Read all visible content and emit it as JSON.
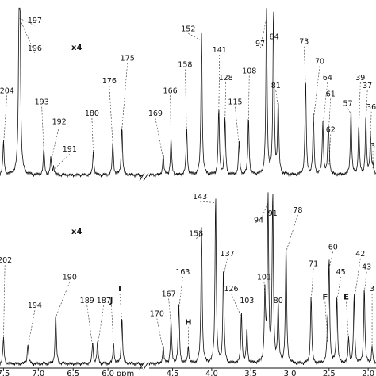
{
  "chart_data": {
    "type": "line",
    "xlabel": "ppm",
    "x_ticks_left": [
      "7.5",
      "7.0",
      "6.5",
      "6.0"
    ],
    "x_ticks_right": [
      "4.5",
      "4.0",
      "3.5",
      "3.0",
      "2.5",
      "2.0"
    ],
    "x_tick_values_left": [
      7.5,
      7.0,
      6.5,
      6.0
    ],
    "x_tick_values_right": [
      4.5,
      4.0,
      3.5,
      3.0,
      2.5,
      2.0
    ],
    "x_range_left": [
      7.55,
      5.5
    ],
    "x_range_right": [
      4.8,
      1.9
    ],
    "panels": [
      {
        "name": "top",
        "scale_note": "x4",
        "peaks_left": [
          {
            "label": "204",
            "ppm": 7.5,
            "h": 0.2,
            "lx": 7.45,
            "ly": 0.52
          },
          {
            "label": "197",
            "ppm": 7.27,
            "h": 1.0,
            "lx": 7.05,
            "ly": 0.95
          },
          {
            "label": "196",
            "ppm": 7.27,
            "h": 1.0,
            "lx": 7.05,
            "ly": 0.78
          },
          {
            "label": "193",
            "ppm": 6.92,
            "h": 0.16,
            "lx": 6.95,
            "ly": 0.45
          },
          {
            "label": "192",
            "ppm": 6.82,
            "h": 0.1,
            "lx": 6.7,
            "ly": 0.33
          },
          {
            "label": "191",
            "ppm": 6.78,
            "h": 0.05,
            "lx": 6.55,
            "ly": 0.16
          },
          {
            "label": "180",
            "ppm": 6.21,
            "h": 0.14,
            "lx": 6.23,
            "ly": 0.38
          },
          {
            "label": "176",
            "ppm": 5.93,
            "h": 0.2,
            "lx": 5.98,
            "ly": 0.58
          },
          {
            "label": "175",
            "ppm": 5.8,
            "h": 0.3,
            "lx": 5.72,
            "ly": 0.72
          }
        ],
        "peaks_right": [
          {
            "label": "169",
            "ppm": 4.62,
            "h": 0.12,
            "lx": 4.72,
            "ly": 0.38
          },
          {
            "label": "166",
            "ppm": 4.52,
            "h": 0.22,
            "lx": 4.53,
            "ly": 0.52
          },
          {
            "label": "158",
            "ppm": 4.32,
            "h": 0.28,
            "lx": 4.34,
            "ly": 0.68
          },
          {
            "label": "152",
            "ppm": 4.13,
            "h": 0.86,
            "lx": 4.3,
            "ly": 0.9
          },
          {
            "label": "141",
            "ppm": 3.91,
            "h": 0.4,
            "lx": 3.9,
            "ly": 0.77
          },
          {
            "label": "128",
            "ppm": 3.83,
            "h": 0.34,
            "lx": 3.82,
            "ly": 0.6
          },
          {
            "label": "115",
            "ppm": 3.65,
            "h": 0.2,
            "lx": 3.7,
            "ly": 0.45
          },
          {
            "label": "108",
            "ppm": 3.53,
            "h": 0.35,
            "lx": 3.52,
            "ly": 0.64
          },
          {
            "label": "97",
            "ppm": 3.3,
            "h": 1.0,
            "lx": 3.38,
            "ly": 0.81
          },
          {
            "label": "84",
            "ppm": 3.21,
            "h": 1.0,
            "lx": 3.2,
            "ly": 0.85
          },
          {
            "label": "81",
            "ppm": 3.15,
            "h": 0.44,
            "lx": 3.18,
            "ly": 0.55
          },
          {
            "label": "73",
            "ppm": 2.8,
            "h": 0.58,
            "lx": 2.82,
            "ly": 0.82
          },
          {
            "label": "70",
            "ppm": 2.7,
            "h": 0.36,
            "lx": 2.62,
            "ly": 0.7
          },
          {
            "label": "64",
            "ppm": 2.58,
            "h": 0.32,
            "lx": 2.52,
            "ly": 0.6
          },
          {
            "label": "61",
            "ppm": 2.51,
            "h": 0.26,
            "lx": 2.48,
            "ly": 0.5
          },
          {
            "label": "62",
            "ppm": 2.5,
            "h": 0.08,
            "lx": 2.48,
            "ly": 0.28
          },
          {
            "label": "57",
            "ppm": 2.22,
            "h": 0.4,
            "lx": 2.26,
            "ly": 0.44
          },
          {
            "label": "39",
            "ppm": 2.12,
            "h": 0.3,
            "lx": 2.1,
            "ly": 0.6
          },
          {
            "label": "37",
            "ppm": 2.03,
            "h": 0.34,
            "lx": 2.01,
            "ly": 0.55
          },
          {
            "label": "36",
            "ppm": 1.97,
            "h": 0.25,
            "lx": 1.96,
            "ly": 0.42
          },
          {
            "label": "3",
            "ppm": 1.94,
            "h": 0.05,
            "lx": 1.94,
            "ly": 0.18
          }
        ]
      },
      {
        "name": "bottom",
        "scale_note": "x4",
        "peaks_left": [
          {
            "label": "202",
            "ppm": 7.5,
            "h": 0.15,
            "lx": 7.48,
            "ly": 0.62
          },
          {
            "label": "194",
            "ppm": 7.15,
            "h": 0.12,
            "lx": 7.05,
            "ly": 0.35
          },
          {
            "label": "190",
            "ppm": 6.75,
            "h": 0.3,
            "lx": 6.55,
            "ly": 0.52
          },
          {
            "label": "189",
            "ppm": 6.22,
            "h": 0.12,
            "lx": 6.3,
            "ly": 0.38
          },
          {
            "label": "187",
            "ppm": 6.15,
            "h": 0.12,
            "lx": 6.06,
            "ly": 0.38
          },
          {
            "label": "J",
            "ppm": 5.92,
            "h": 0.12,
            "lx": 5.95,
            "ly": 0.38
          },
          {
            "label": "I",
            "ppm": 5.8,
            "h": 0.28,
            "lx": 5.83,
            "ly": 0.45
          }
        ],
        "peaks_right": [
          {
            "label": "170",
            "ppm": 4.62,
            "h": 0.1,
            "lx": 4.7,
            "ly": 0.3
          },
          {
            "label": "167",
            "ppm": 4.52,
            "h": 0.25,
            "lx": 4.55,
            "ly": 0.42
          },
          {
            "label": "163",
            "ppm": 4.42,
            "h": 0.35,
            "lx": 4.37,
            "ly": 0.55
          },
          {
            "label": "H",
            "ppm": 4.3,
            "h": 0.1,
            "lx": 4.3,
            "ly": 0.25
          },
          {
            "label": "158",
            "ppm": 4.13,
            "h": 0.8,
            "lx": 4.2,
            "ly": 0.78
          },
          {
            "label": "143",
            "ppm": 3.95,
            "h": 1.0,
            "lx": 4.15,
            "ly": 1.0
          },
          {
            "label": "137",
            "ppm": 3.85,
            "h": 0.55,
            "lx": 3.8,
            "ly": 0.66
          },
          {
            "label": "126",
            "ppm": 3.62,
            "h": 0.3,
            "lx": 3.75,
            "ly": 0.45
          },
          {
            "label": "103",
            "ppm": 3.55,
            "h": 0.2,
            "lx": 3.55,
            "ly": 0.38
          },
          {
            "label": "101",
            "ppm": 3.32,
            "h": 0.4,
            "lx": 3.33,
            "ly": 0.52
          },
          {
            "label": "94",
            "ppm": 3.28,
            "h": 1.0,
            "lx": 3.4,
            "ly": 0.86
          },
          {
            "label": "91",
            "ppm": 3.22,
            "h": 1.0,
            "lx": 3.22,
            "ly": 0.9
          },
          {
            "label": "80",
            "ppm": 3.15,
            "h": 0.35,
            "lx": 3.15,
            "ly": 0.38
          },
          {
            "label": "78",
            "ppm": 3.05,
            "h": 0.7,
            "lx": 2.9,
            "ly": 0.92
          },
          {
            "label": "71",
            "ppm": 2.73,
            "h": 0.4,
            "lx": 2.7,
            "ly": 0.6
          },
          {
            "label": "F",
            "ppm": 2.52,
            "h": 0.15,
            "lx": 2.55,
            "ly": 0.4
          },
          {
            "label": "60",
            "ppm": 2.5,
            "h": 0.6,
            "lx": 2.45,
            "ly": 0.7
          },
          {
            "label": "45",
            "ppm": 2.4,
            "h": 0.4,
            "lx": 2.35,
            "ly": 0.55
          },
          {
            "label": "E",
            "ppm": 2.25,
            "h": 0.15,
            "lx": 2.28,
            "ly": 0.4
          },
          {
            "label": "42",
            "ppm": 2.18,
            "h": 0.4,
            "lx": 2.1,
            "ly": 0.66
          },
          {
            "label": "43",
            "ppm": 2.05,
            "h": 0.45,
            "lx": 2.02,
            "ly": 0.58
          },
          {
            "label": "3",
            "ppm": 1.95,
            "h": 0.1,
            "lx": 1.95,
            "ly": 0.45
          }
        ]
      }
    ]
  }
}
